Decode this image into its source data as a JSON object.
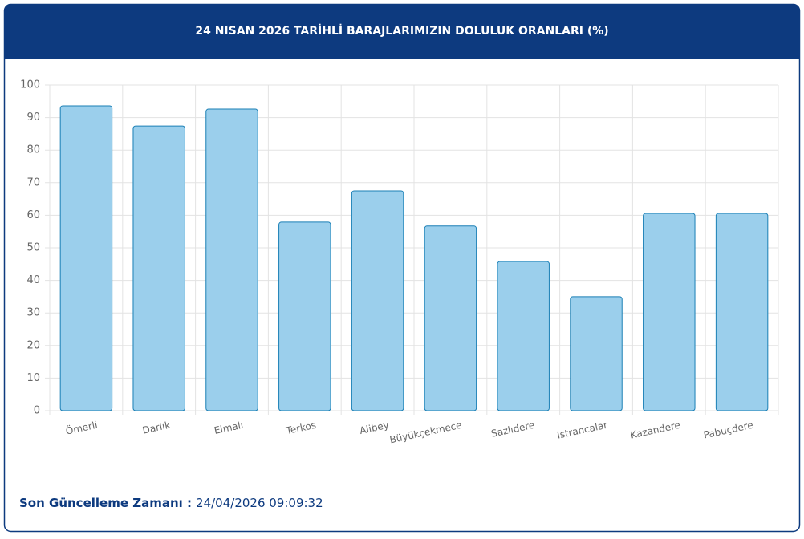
{
  "chart_data": {
    "type": "bar",
    "title": "24 NISAN 2026 TARİHLİ BARAJLARIMIZIN DOLULUK ORANLARI (%)",
    "categories": [
      "Ömerli",
      "Darlık",
      "Elmalı",
      "Terkos",
      "Alibey",
      "Büyükçekmece",
      "Sazlıdere",
      "Istrancalar",
      "Kazandere",
      "Pabuçdere"
    ],
    "values": [
      93.6,
      87.4,
      92.6,
      57.9,
      67.5,
      56.7,
      45.8,
      35.0,
      60.6,
      60.6
    ],
    "color": "#9bcfec",
    "ylim": [
      0,
      100
    ],
    "yticks": [
      0,
      10,
      20,
      30,
      40,
      50,
      60,
      70,
      80,
      90,
      100
    ],
    "grid": true
  },
  "footer": {
    "label": "Son Güncelleme Zamanı :",
    "value": "24/04/2026 09:09:32"
  }
}
